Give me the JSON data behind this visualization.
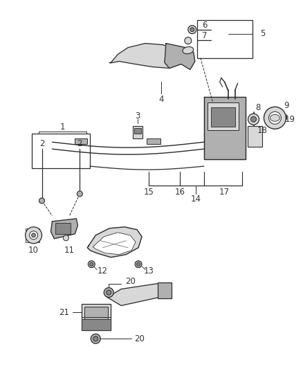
{
  "bg_color": "#ffffff",
  "line_color": "#2a2a2a",
  "gray_fill": "#b0b0b0",
  "light_gray": "#d8d8d8",
  "dark_gray": "#888888",
  "figsize": [
    4.38,
    5.33
  ],
  "dpi": 100,
  "xlim": [
    0,
    438
  ],
  "ylim": [
    0,
    533
  ],
  "label_fs": 8.5,
  "label_color": "#333333"
}
